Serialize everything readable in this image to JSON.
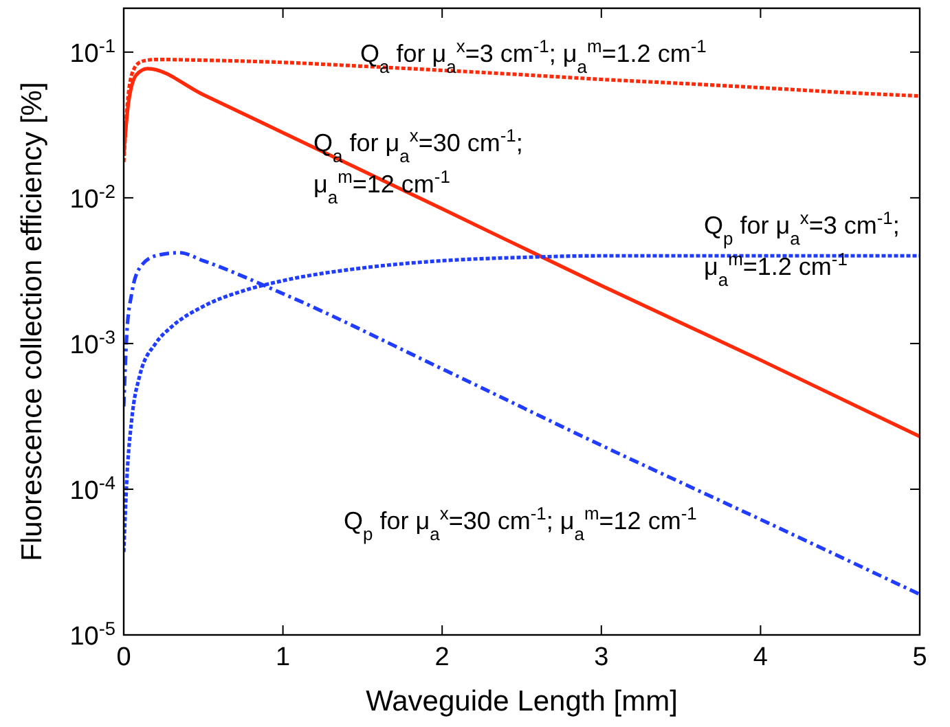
{
  "chart_data": {
    "type": "line",
    "xlabel": "Waveguide Length [mm]",
    "ylabel": "Fluorescence collection efficiency [%]",
    "log": "y",
    "grid": false,
    "xlim": [
      0,
      5
    ],
    "xticks": [
      0,
      1,
      2,
      3,
      4,
      5
    ],
    "ylim": [
      1e-05,
      0.2
    ],
    "yticks": [
      {
        "value": 1e-05,
        "label": "10$^{-5}$"
      },
      {
        "value": 0.0001,
        "label": "10$^{-4}$"
      },
      {
        "value": 0.001,
        "label": "10$^{-3}$"
      },
      {
        "value": 0.01,
        "label": "10$^{-2}$"
      },
      {
        "value": 0.1,
        "label": "10$^{-1}$"
      }
    ],
    "series": [
      {
        "color": "#ff2a0a",
        "line_style": "dotted",
        "x": [
          0,
          0.02,
          0.05,
          0.1,
          0.15,
          0.2,
          0.5,
          1,
          1.5,
          2,
          2.5,
          3,
          3.5,
          4,
          4.5,
          5
        ],
        "values": [
          0.0176,
          0.04,
          0.07,
          0.085,
          0.088,
          0.089,
          0.088,
          0.085,
          0.08,
          0.075,
          0.07,
          0.065,
          0.061,
          0.057,
          0.053,
          0.05
        ]
      },
      {
        "color": "#ff2a0a",
        "line_style": "solid",
        "x": [
          0,
          0.03,
          0.08,
          0.15,
          0.5,
          1,
          2,
          3,
          4,
          5
        ],
        "values": [
          0.02,
          0.045,
          0.07,
          0.077,
          0.051,
          0.028,
          0.0084,
          0.0025,
          0.00077,
          0.00023
        ]
      },
      {
        "color": "#1f3cff",
        "line_style": "dotted",
        "x": [
          0,
          0.02,
          0.05,
          0.1,
          0.2,
          0.3,
          0.5,
          0.75,
          1,
          1.5,
          2,
          2.5,
          3,
          4,
          5
        ],
        "values": [
          3.7e-05,
          0.00012,
          0.0003,
          0.0006,
          0.001,
          0.0013,
          0.0018,
          0.0023,
          0.0027,
          0.0033,
          0.0037,
          0.0039,
          0.004,
          0.004,
          0.004
        ]
      },
      {
        "color": "#1f3cff",
        "line_style": "dashed",
        "x": [
          0,
          0.02,
          0.05,
          0.1,
          0.2,
          0.35,
          0.5,
          1,
          2,
          3,
          4,
          5
        ],
        "values": [
          0.00037,
          0.0012,
          0.0022,
          0.0033,
          0.004,
          0.0042,
          0.0037,
          0.0022,
          0.00067,
          0.0002,
          6.2e-05,
          1.9e-05
        ]
      }
    ],
    "annotations": [
      "Q$_{a}$ for μ$_{a}$$^{x}$=3 cm$^{-1}$; μ$_{a}$$^{m}$=1.2 cm$^{-1}$",
      "Q$_{a}$ for μ$_{a}$$^{x}$=30 cm$^{-1}$;\nμ$_{a}$$^{m}$=12 cm$^{-1}$",
      "Q$_{p}$ for μ$_{a}$$^{x}$=3 cm$^{-1}$;\nμ$_{a}$$^{m}$=1.2 cm$^{-1}$",
      "Q$_{p}$ for μ$_{a}$$^{x}$=30 cm$^{-1}$; μ$_{a}$$^{m}$=12 cm$^{-1}$"
    ]
  }
}
